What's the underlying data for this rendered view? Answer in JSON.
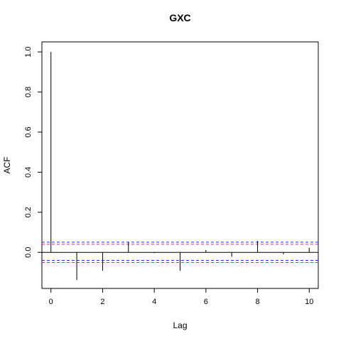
{
  "chart_data": {
    "type": "bar",
    "title": "GXC",
    "xlabel": "Lag",
    "ylabel": "ACF",
    "xlim": [
      -0.35,
      10.35
    ],
    "ylim": [
      -0.18,
      1.05
    ],
    "x_ticks": [
      0,
      2,
      4,
      6,
      8,
      10
    ],
    "y_ticks": [
      0.0,
      0.2,
      0.4,
      0.6,
      0.8,
      1.0
    ],
    "x_tick_labels": [
      "0",
      "2",
      "4",
      "6",
      "8",
      "10"
    ],
    "y_tick_labels": [
      "0.0",
      "0.2",
      "0.4",
      "0.6",
      "0.8",
      "1.0"
    ],
    "lags": [
      0,
      1,
      2,
      3,
      4,
      5,
      6,
      7,
      8,
      9,
      10
    ],
    "acf": [
      1.0,
      -0.138,
      -0.092,
      0.052,
      -0.004,
      -0.092,
      0.012,
      -0.022,
      0.057,
      -0.01,
      0.023
    ],
    "confidence_bounds": [
      0.0455,
      -0.0455
    ],
    "confidence_line_colors": [
      "#2929ff",
      "#ff00ff"
    ],
    "grid": false
  }
}
